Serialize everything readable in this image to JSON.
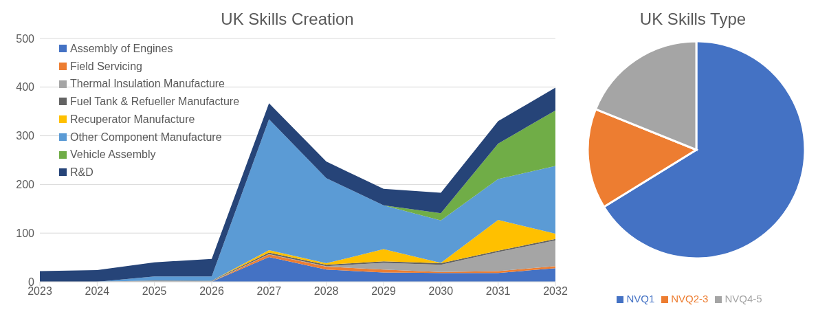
{
  "chart_data": [
    {
      "type": "area",
      "title": "UK Skills Creation",
      "stacked": true,
      "categories": [
        "2023",
        "2024",
        "2025",
        "2026",
        "2027",
        "2028",
        "2029",
        "2030",
        "2031",
        "2032"
      ],
      "series": [
        {
          "name": "Assembly of Engines",
          "color": "#4472c4",
          "values": [
            0,
            0,
            0,
            0,
            51,
            25,
            19,
            18,
            18,
            28
          ]
        },
        {
          "name": "Field Servicing",
          "color": "#ed7d31",
          "values": [
            0,
            0,
            0,
            0,
            5,
            6,
            6,
            2,
            4,
            4
          ]
        },
        {
          "name": "Thermal Insulation Manufacture",
          "color": "#a5a5a5",
          "values": [
            0,
            0,
            2,
            1,
            1,
            1,
            14,
            15,
            39,
            53
          ]
        },
        {
          "name": "Fuel Tank & Refueller Manufacture",
          "color": "#636363",
          "values": [
            0,
            0,
            1,
            1,
            3,
            3,
            3,
            3,
            3,
            3
          ]
        },
        {
          "name": "Recuperator Manufacture",
          "color": "#ffc000",
          "values": [
            0,
            0,
            0,
            0,
            5,
            3,
            25,
            1,
            63,
            11
          ]
        },
        {
          "name": "Other Component Manufacture",
          "color": "#5b9bd5",
          "values": [
            0,
            0,
            8,
            9,
            269,
            175,
            90,
            87,
            84,
            139
          ]
        },
        {
          "name": "Vehicle Assembly",
          "color": "#70ad47",
          "values": [
            0,
            0,
            0,
            0,
            0,
            0,
            0,
            15,
            73,
            114
          ]
        },
        {
          "name": "R&D",
          "color": "#264478",
          "values": [
            22,
            24,
            29,
            36,
            33,
            34,
            34,
            42,
            46,
            47
          ]
        }
      ],
      "ylim": [
        0,
        500
      ],
      "yticks": [
        0,
        100,
        200,
        300,
        400,
        500
      ],
      "grid": "y",
      "legend": "top left"
    },
    {
      "type": "pie",
      "title": "UK Skills Type",
      "categories": [
        "NVQ1",
        "NVQ2-3",
        "NVQ4-5"
      ],
      "values": [
        66.2,
        14.9,
        18.9
      ],
      "colors": [
        "#4472c4",
        "#ed7d31",
        "#a5a5a5"
      ],
      "legend": "bottom"
    }
  ]
}
